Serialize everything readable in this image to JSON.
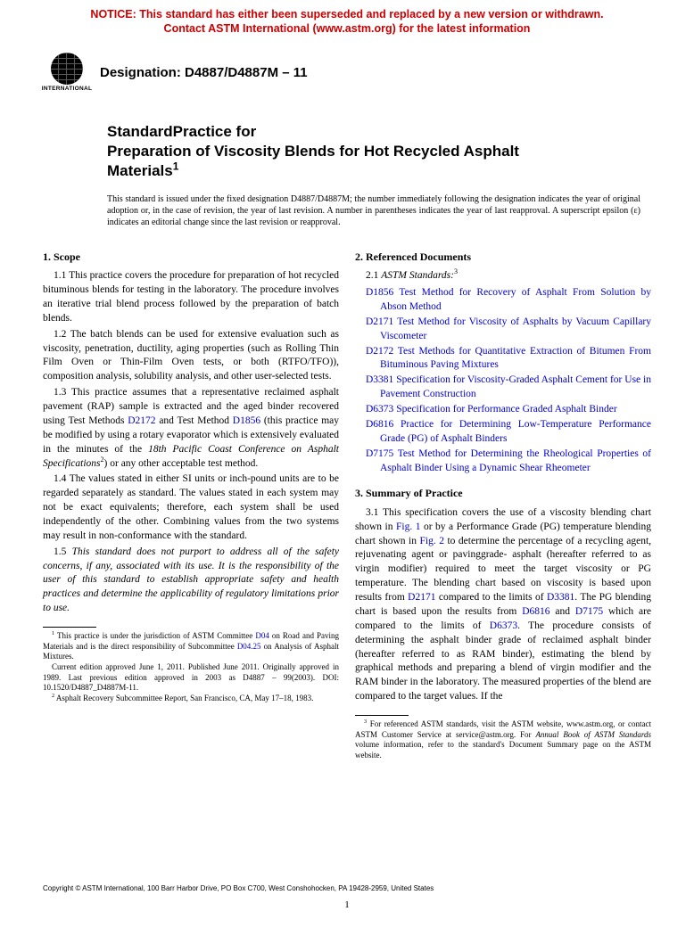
{
  "notice": {
    "line1": "NOTICE: This standard has either been superseded and replaced by a new version or withdrawn.",
    "line2": "Contact ASTM International (www.astm.org) for the latest information",
    "color": "#cc0000"
  },
  "logo": {
    "top": "INTERNATIONAL"
  },
  "designation": "Designation: D4887/D4887M – 11",
  "title": {
    "line1": "StandardPractice for",
    "line2": "Preparation of Viscosity Blends for Hot Recycled Asphalt",
    "line3": "Materials"
  },
  "issuance": "This standard is issued under the fixed designation D4887/D4887M; the number immediately following the designation indicates the year of original adoption or, in the case of revision, the year of last revision. A number in parentheses indicates the year of last reapproval. A superscript epsilon (ε) indicates an editorial change since the last revision or reapproval.",
  "s1": {
    "head": "1. Scope",
    "p1": "1.1 This practice covers the procedure for preparation of hot recycled bituminous blends for testing in the laboratory. The procedure involves an iterative trial blend process followed by the preparation of batch blends.",
    "p2": "1.2 The batch blends can be used for extensive evaluation such as viscosity, penetration, ductility, aging properties (such as Rolling Thin Film Oven or Thin-Film Oven tests, or both (RTFO/TFO)), composition analysis, solubility analysis, and other user-selected tests.",
    "p3a": "1.3 This practice assumes that a representative reclaimed asphalt pavement (RAP) sample is extracted and the aged binder recovered using Test Methods ",
    "p3_link1": "D2172",
    "p3b": " and Test Method ",
    "p3_link2": "D1856",
    "p3c": " (this practice may be modified by using a rotary evaporator which is extensively evaluated in the minutes of the ",
    "p3_italic": "18th Pacific Coast Conference on Asphalt Specifications",
    "p3d": ") or any other acceptable test method.",
    "p4": "1.4 The values stated in either SI units or inch-pound units are to be regarded separately as standard. The values stated in each system may not be exact equivalents; therefore, each system shall be used independently of the other. Combining values from the two systems may result in non-conformance with the standard.",
    "p5": "1.5 This standard does not purport to address all of the safety concerns, if any, associated with its use. It is the responsibility of the user of this standard to establish appropriate safety and health practices and determine the applicability of regulatory limitations prior to use."
  },
  "fn1a": " This practice is under the jurisdiction of ASTM Committee ",
  "fn1_link1": "D04",
  "fn1b": " on Road and Paving Materials and is the direct responsibility of Subcommittee ",
  "fn1_link2": "D04.25",
  "fn1c": " on Analysis of Asphalt Mixtures.",
  "fn1d": "Current edition approved June 1, 2011. Published June 2011. Originally approved in 1989. Last previous edition approved in 2003 as D4887 – 99(2003). DOI: 10.1520/D4887_D4887M-11.",
  "fn2": " Asphalt Recovery Subcommittee Report, San Francisco, CA, May 17–18, 1983.",
  "s2": {
    "head": "2. Referenced Documents",
    "sub": "2.1 ",
    "sub_italic": "ASTM Standards:",
    "refs": [
      {
        "code": "D1856",
        "text": " Test Method for Recovery of Asphalt From Solution by Abson Method"
      },
      {
        "code": "D2171",
        "text": " Test Method for Viscosity of Asphalts by Vacuum Capillary Viscometer"
      },
      {
        "code": "D2172",
        "text": " Test Methods for Quantitative Extraction of Bitumen From Bituminous Paving Mixtures"
      },
      {
        "code": "D3381",
        "text": " Specification for Viscosity-Graded Asphalt Cement for Use in Pavement Construction"
      },
      {
        "code": "D6373",
        "text": " Specification for Performance Graded Asphalt Binder"
      },
      {
        "code": "D6816",
        "text": " Practice for Determining Low-Temperature Performance Grade (PG) of Asphalt Binders"
      },
      {
        "code": "D7175",
        "text": " Test Method for Determining the Rheological Properties of Asphalt Binder Using a Dynamic Shear Rheometer"
      }
    ]
  },
  "s3": {
    "head": "3. Summary of Practice",
    "p1a": "3.1 This specification covers the use of a viscosity blending chart shown in ",
    "fig1": "Fig. 1",
    "p1b": " or by a Performance Grade (PG) temperature blending chart shown in ",
    "fig2": "Fig. 2",
    "p1c": " to determine the percentage of a recycling agent, rejuvenating agent or pavinggrade- asphalt (hereafter referred to as virgin modifier) required to meet the target viscosity or PG temperature. The blending chart based on viscosity is based upon results from ",
    "l1": "D2171",
    "p1d": " compared to the limits of ",
    "l2": "D3381",
    "p1e": ". The PG blending chart is based upon the results from ",
    "l3": "D6816",
    "p1f": " and ",
    "l4": "D7175",
    "p1g": " which are compared to the limits of ",
    "l5": "D6373",
    "p1h": ". The procedure consists of determining the asphalt binder grade of reclaimed asphalt binder (hereafter referred to as RAM binder), estimating the blend by graphical methods and preparing a blend of virgin modifier and the RAM binder in the laboratory. The measured properties of the blend are compared to the target values. If the"
  },
  "fn3a": " For referenced ASTM standards, visit the ASTM website, www.astm.org, or contact ASTM Customer Service at service@astm.org. For ",
  "fn3_italic": "Annual Book of ASTM Standards",
  "fn3b": " volume information, refer to the standard's Document Summary page on the ASTM website.",
  "copyright": "Copyright © ASTM International, 100 Barr Harbor Drive, PO Box C700, West Conshohocken, PA 19428-2959, United States",
  "page": "1",
  "link_color": "#0000cc"
}
